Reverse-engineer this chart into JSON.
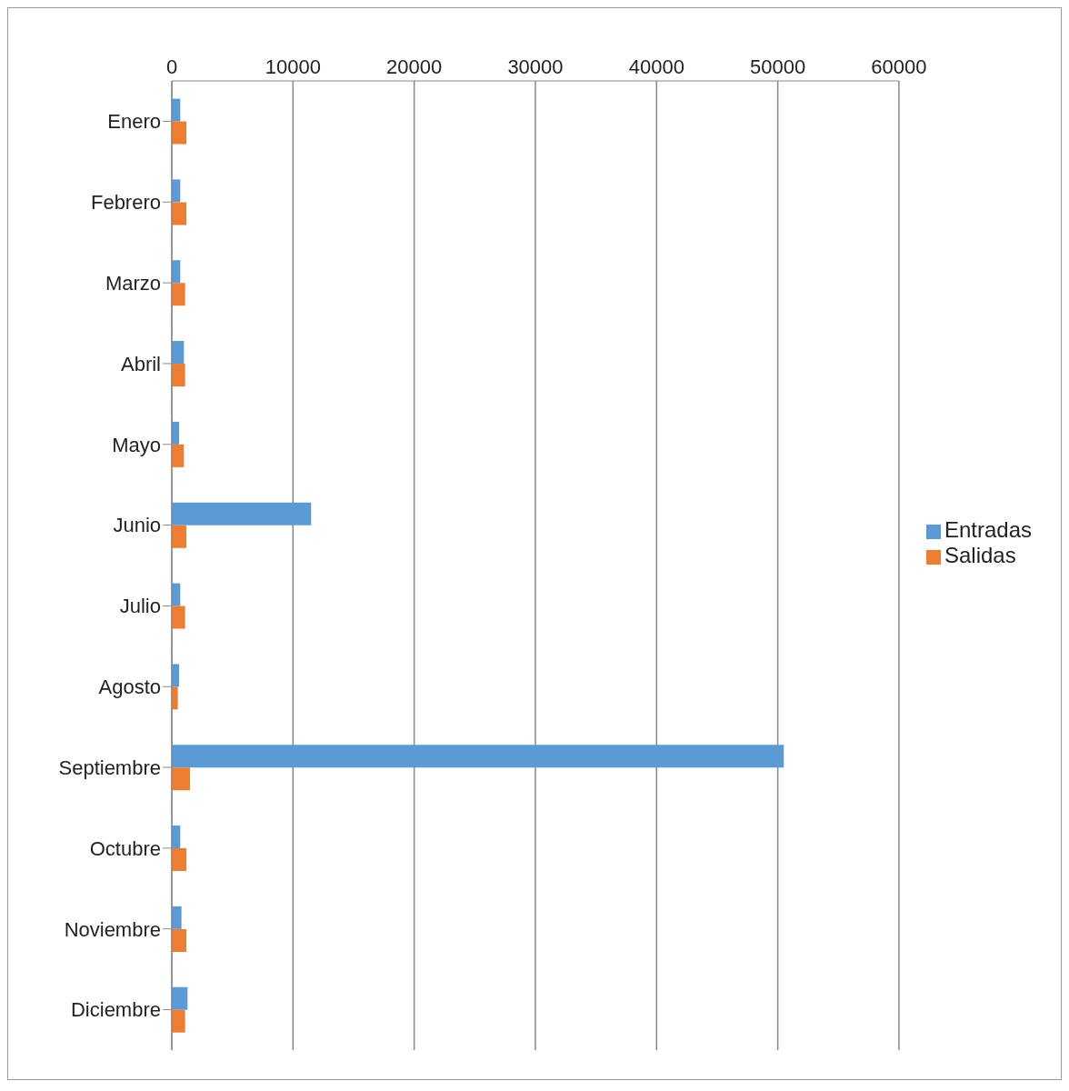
{
  "chart_data": {
    "type": "bar",
    "orientation": "horizontal",
    "categories": [
      "Enero",
      "Febrero",
      "Marzo",
      "Abril",
      "Mayo",
      "Junio",
      "Julio",
      "Agosto",
      "Septiembre",
      "Octubre",
      "Noviembre",
      "Diciembre"
    ],
    "series": [
      {
        "name": "Entradas",
        "color": "#5b9bd5",
        "values": [
          700,
          700,
          700,
          1000,
          600,
          11500,
          700,
          600,
          50500,
          700,
          800,
          1300
        ]
      },
      {
        "name": "Salidas",
        "color": "#ed7d31",
        "values": [
          1200,
          1200,
          1100,
          1100,
          1000,
          1200,
          1100,
          500,
          1500,
          1200,
          1200,
          1100
        ]
      }
    ],
    "xlim": [
      0,
      60000
    ],
    "xticks": [
      0,
      10000,
      20000,
      30000,
      40000,
      50000,
      60000
    ],
    "grid": "x",
    "legend": "right"
  }
}
